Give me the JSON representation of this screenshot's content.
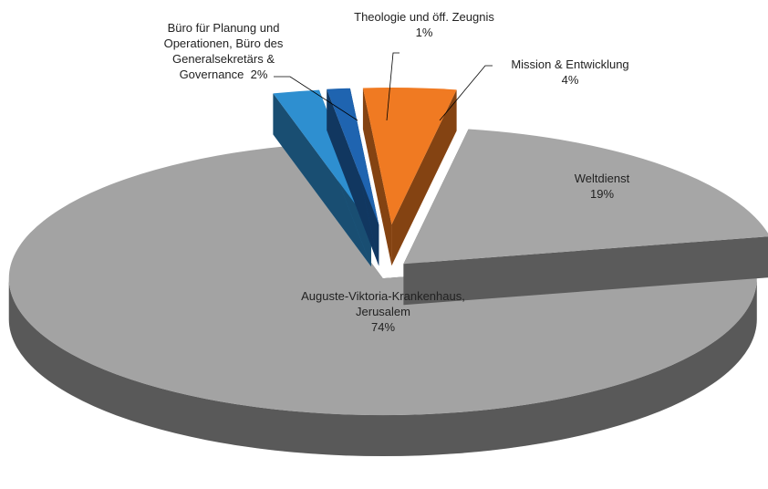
{
  "chart_data": {
    "type": "pie",
    "categories": [
      "Weltdienst",
      "Auguste-Viktoria-Krankenhaus, Jerusalem",
      "Büro für Planung und Operationen, Büro des Generalsekretärs & Governance",
      "Theologie und öff. Zeugnis",
      "Mission & Entwicklung"
    ],
    "values": [
      19,
      74,
      2,
      1,
      4
    ],
    "value_labels": [
      "19%",
      "74%",
      "2%",
      "1%",
      "4%"
    ],
    "colors": [
      "#a6a6a6",
      "#a3a3a3",
      "#2e8fd0",
      "#1f64b0",
      "#f07a22"
    ]
  }
}
